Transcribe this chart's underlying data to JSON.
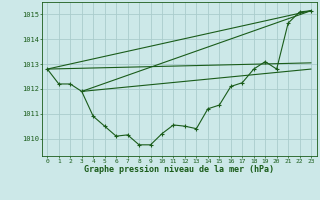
{
  "background_color": "#cce8e8",
  "grid_color": "#aacccc",
  "line_color": "#1a5c1a",
  "marker_color": "#1a5c1a",
  "title": "Graphe pression niveau de la mer (hPa)",
  "xlim": [
    -0.5,
    23.5
  ],
  "ylim": [
    1009.3,
    1015.5
  ],
  "yticks": [
    1010,
    1011,
    1012,
    1013,
    1014,
    1015
  ],
  "xticks": [
    0,
    1,
    2,
    3,
    4,
    5,
    6,
    7,
    8,
    9,
    10,
    11,
    12,
    13,
    14,
    15,
    16,
    17,
    18,
    19,
    20,
    21,
    22,
    23
  ],
  "series": [
    {
      "x": [
        0,
        1,
        2,
        3,
        4,
        5,
        6,
        7,
        8,
        9,
        10,
        11,
        12,
        13,
        14,
        15,
        16,
        17,
        18,
        19,
        20,
        21,
        22,
        23
      ],
      "y": [
        1012.8,
        1012.2,
        1012.2,
        1011.9,
        1010.9,
        1010.5,
        1010.1,
        1010.15,
        1009.75,
        1009.75,
        1010.2,
        1010.55,
        1010.5,
        1010.4,
        1011.2,
        1011.35,
        1012.1,
        1012.25,
        1012.8,
        1013.1,
        1012.8,
        1014.65,
        1015.1,
        1015.15
      ]
    },
    {
      "x": [
        0,
        23
      ],
      "y": [
        1012.8,
        1015.15
      ]
    },
    {
      "x": [
        3,
        23
      ],
      "y": [
        1011.9,
        1015.15
      ]
    },
    {
      "x": [
        0,
        23
      ],
      "y": [
        1012.8,
        1013.05
      ]
    },
    {
      "x": [
        3,
        23
      ],
      "y": [
        1011.9,
        1012.8
      ]
    }
  ]
}
